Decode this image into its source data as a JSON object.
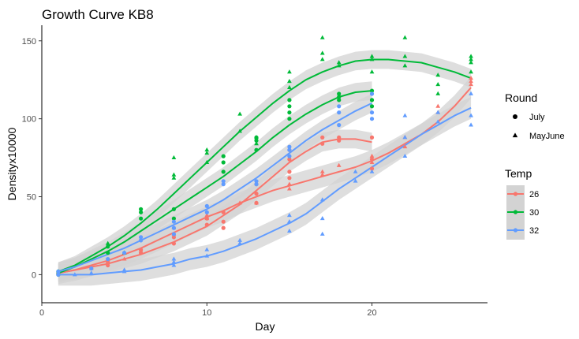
{
  "chart_data": {
    "type": "scatter",
    "title": "Growth Curve KB8",
    "xlabel": "Day",
    "ylabel": "Densityx10000",
    "xlim": [
      0,
      27
    ],
    "ylim": [
      -18,
      160
    ],
    "x_ticks": [
      0,
      10,
      20
    ],
    "y_ticks": [
      0,
      50,
      100,
      150
    ],
    "grid": false,
    "smooth_band_color": "#d3d3d3",
    "legends": {
      "shape": {
        "title": "Round",
        "entries": [
          {
            "label": "July",
            "shape": "circle"
          },
          {
            "label": "MayJune",
            "shape": "triangle"
          }
        ]
      },
      "color": {
        "title": "Temp",
        "entries": [
          {
            "label": "26",
            "color": "#F8766D"
          },
          {
            "label": "30",
            "color": "#00BA38"
          },
          {
            "label": "32",
            "color": "#619CFF"
          }
        ]
      }
    },
    "series": [
      {
        "temp": "26",
        "round": "July",
        "color": "#F8766D",
        "shape": "circle",
        "points": [
          [
            1,
            0
          ],
          [
            1,
            1
          ],
          [
            4,
            6
          ],
          [
            4,
            8
          ],
          [
            6,
            14
          ],
          [
            6,
            16
          ],
          [
            8,
            20
          ],
          [
            8,
            24
          ],
          [
            10,
            32
          ],
          [
            10,
            36
          ],
          [
            11,
            30
          ],
          [
            11,
            34
          ],
          [
            11,
            40
          ],
          [
            13,
            46
          ],
          [
            13,
            52
          ],
          [
            13,
            58
          ],
          [
            15,
            62
          ],
          [
            15,
            66
          ],
          [
            15,
            74
          ],
          [
            15,
            80
          ],
          [
            17,
            84
          ],
          [
            17,
            88
          ],
          [
            18,
            86
          ],
          [
            18,
            88
          ],
          [
            20,
            68
          ],
          [
            20,
            74
          ],
          [
            20,
            88
          ]
        ],
        "fit": [
          [
            1,
            1
          ],
          [
            2,
            3
          ],
          [
            3,
            5
          ],
          [
            4,
            7
          ],
          [
            5,
            10
          ],
          [
            6,
            13
          ],
          [
            7,
            17
          ],
          [
            8,
            21
          ],
          [
            9,
            26
          ],
          [
            10,
            31
          ],
          [
            11,
            38
          ],
          [
            12,
            45
          ],
          [
            13,
            54
          ],
          [
            14,
            63
          ],
          [
            15,
            72
          ],
          [
            16,
            79
          ],
          [
            17,
            85
          ],
          [
            18,
            87
          ],
          [
            19,
            87
          ],
          [
            20,
            85
          ]
        ],
        "band": 6
      },
      {
        "temp": "26",
        "round": "MayJune",
        "color": "#F8766D",
        "shape": "triangle",
        "points": [
          [
            1,
            1
          ],
          [
            3,
            4
          ],
          [
            5,
            10
          ],
          [
            6,
            16
          ],
          [
            8,
            26
          ],
          [
            8,
            30
          ],
          [
            10,
            36
          ],
          [
            10,
            38
          ],
          [
            12,
            46
          ],
          [
            13,
            46
          ],
          [
            15,
            55
          ],
          [
            15,
            58
          ],
          [
            17,
            64
          ],
          [
            17,
            66
          ],
          [
            18,
            70
          ],
          [
            20,
            72
          ],
          [
            20,
            76
          ],
          [
            22,
            82
          ],
          [
            22,
            88
          ],
          [
            24,
            104
          ],
          [
            24,
            108
          ],
          [
            26,
            122
          ],
          [
            26,
            124
          ],
          [
            26,
            126
          ]
        ],
        "fit": [
          [
            1,
            1
          ],
          [
            2,
            3
          ],
          [
            3,
            6
          ],
          [
            4,
            9
          ],
          [
            5,
            13
          ],
          [
            6,
            17
          ],
          [
            7,
            22
          ],
          [
            8,
            27
          ],
          [
            9,
            32
          ],
          [
            10,
            37
          ],
          [
            11,
            41
          ],
          [
            12,
            46
          ],
          [
            13,
            50
          ],
          [
            14,
            54
          ],
          [
            15,
            57
          ],
          [
            16,
            60
          ],
          [
            17,
            63
          ],
          [
            18,
            66
          ],
          [
            19,
            69
          ],
          [
            20,
            73
          ],
          [
            21,
            78
          ],
          [
            22,
            84
          ],
          [
            23,
            90
          ],
          [
            24,
            98
          ],
          [
            25,
            108
          ],
          [
            26,
            120
          ]
        ],
        "band": 7
      },
      {
        "temp": "30",
        "round": "July",
        "color": "#00BA38",
        "shape": "circle",
        "points": [
          [
            1,
            0
          ],
          [
            1,
            2
          ],
          [
            4,
            14
          ],
          [
            4,
            18
          ],
          [
            6,
            36
          ],
          [
            6,
            40
          ],
          [
            6,
            42
          ],
          [
            8,
            36
          ],
          [
            8,
            42
          ],
          [
            11,
            72
          ],
          [
            11,
            76
          ],
          [
            11,
            66
          ],
          [
            13,
            80
          ],
          [
            13,
            86
          ],
          [
            13,
            88
          ],
          [
            15,
            100
          ],
          [
            15,
            104
          ],
          [
            15,
            108
          ],
          [
            15,
            112
          ],
          [
            18,
            112
          ],
          [
            18,
            114
          ],
          [
            18,
            116
          ],
          [
            20,
            108
          ],
          [
            20,
            112
          ],
          [
            20,
            118
          ]
        ],
        "fit": [
          [
            1,
            1
          ],
          [
            2,
            5
          ],
          [
            3,
            10
          ],
          [
            4,
            15
          ],
          [
            5,
            21
          ],
          [
            6,
            28
          ],
          [
            7,
            35
          ],
          [
            8,
            42
          ],
          [
            9,
            49
          ],
          [
            10,
            56
          ],
          [
            11,
            63
          ],
          [
            12,
            71
          ],
          [
            13,
            79
          ],
          [
            14,
            88
          ],
          [
            15,
            96
          ],
          [
            16,
            103
          ],
          [
            17,
            109
          ],
          [
            18,
            114
          ],
          [
            19,
            117
          ],
          [
            20,
            118
          ]
        ],
        "band": 6
      },
      {
        "temp": "30",
        "round": "MayJune",
        "color": "#00BA38",
        "shape": "triangle",
        "points": [
          [
            1,
            2
          ],
          [
            4,
            20
          ],
          [
            5,
            14
          ],
          [
            8,
            62
          ],
          [
            8,
            64
          ],
          [
            8,
            75
          ],
          [
            10,
            72
          ],
          [
            10,
            78
          ],
          [
            10,
            80
          ],
          [
            12,
            92
          ],
          [
            12,
            103
          ],
          [
            13,
            84
          ],
          [
            13,
            88
          ],
          [
            15,
            120
          ],
          [
            15,
            124
          ],
          [
            15,
            130
          ],
          [
            17,
            138
          ],
          [
            17,
            142
          ],
          [
            17,
            152
          ],
          [
            18,
            134
          ],
          [
            18,
            136
          ],
          [
            20,
            130
          ],
          [
            20,
            138
          ],
          [
            20,
            140
          ],
          [
            22,
            134
          ],
          [
            22,
            140
          ],
          [
            22,
            152
          ],
          [
            24,
            116
          ],
          [
            24,
            122
          ],
          [
            24,
            128
          ],
          [
            26,
            130
          ],
          [
            26,
            136
          ],
          [
            26,
            138
          ],
          [
            26,
            140
          ]
        ],
        "fit": [
          [
            1,
            2
          ],
          [
            2,
            6
          ],
          [
            3,
            12
          ],
          [
            4,
            18
          ],
          [
            5,
            25
          ],
          [
            6,
            33
          ],
          [
            7,
            42
          ],
          [
            8,
            52
          ],
          [
            9,
            62
          ],
          [
            10,
            72
          ],
          [
            11,
            82
          ],
          [
            12,
            92
          ],
          [
            13,
            101
          ],
          [
            14,
            110
          ],
          [
            15,
            118
          ],
          [
            16,
            125
          ],
          [
            17,
            130
          ],
          [
            18,
            134
          ],
          [
            19,
            137
          ],
          [
            20,
            138
          ],
          [
            21,
            138
          ],
          [
            22,
            137
          ],
          [
            23,
            136
          ],
          [
            24,
            133
          ],
          [
            25,
            130
          ],
          [
            26,
            126
          ]
        ],
        "band": 6
      },
      {
        "temp": "32",
        "round": "July",
        "color": "#619CFF",
        "shape": "circle",
        "points": [
          [
            1,
            0
          ],
          [
            1,
            2
          ],
          [
            3,
            4
          ],
          [
            4,
            10
          ],
          [
            5,
            14
          ],
          [
            6,
            22
          ],
          [
            6,
            24
          ],
          [
            8,
            26
          ],
          [
            8,
            30
          ],
          [
            8,
            34
          ],
          [
            10,
            40
          ],
          [
            10,
            44
          ],
          [
            11,
            60
          ],
          [
            11,
            58
          ],
          [
            13,
            58
          ],
          [
            13,
            60
          ],
          [
            15,
            76
          ],
          [
            15,
            80
          ],
          [
            15,
            82
          ],
          [
            18,
            96
          ],
          [
            18,
            104
          ],
          [
            18,
            108
          ],
          [
            20,
            100
          ],
          [
            20,
            104
          ],
          [
            20,
            116
          ]
        ],
        "fit": [
          [
            1,
            2
          ],
          [
            2,
            5
          ],
          [
            3,
            9
          ],
          [
            4,
            13
          ],
          [
            5,
            17
          ],
          [
            6,
            22
          ],
          [
            7,
            27
          ],
          [
            8,
            32
          ],
          [
            9,
            37
          ],
          [
            10,
            42
          ],
          [
            11,
            48
          ],
          [
            12,
            55
          ],
          [
            13,
            62
          ],
          [
            14,
            70
          ],
          [
            15,
            78
          ],
          [
            16,
            86
          ],
          [
            17,
            93
          ],
          [
            18,
            99
          ],
          [
            19,
            105
          ],
          [
            20,
            110
          ]
        ],
        "band": 6
      },
      {
        "temp": "32",
        "round": "MayJune",
        "color": "#619CFF",
        "shape": "triangle",
        "points": [
          [
            1,
            1
          ],
          [
            2,
            0
          ],
          [
            3,
            1
          ],
          [
            5,
            2
          ],
          [
            5,
            3
          ],
          [
            8,
            6
          ],
          [
            8,
            8
          ],
          [
            8,
            10
          ],
          [
            10,
            12
          ],
          [
            10,
            16
          ],
          [
            12,
            20
          ],
          [
            12,
            22
          ],
          [
            15,
            28
          ],
          [
            15,
            34
          ],
          [
            15,
            38
          ],
          [
            17,
            26
          ],
          [
            17,
            36
          ],
          [
            17,
            48
          ],
          [
            19,
            60
          ],
          [
            19,
            66
          ],
          [
            20,
            66
          ],
          [
            22,
            76
          ],
          [
            22,
            88
          ],
          [
            22,
            102
          ],
          [
            24,
            98
          ],
          [
            24,
            104
          ],
          [
            26,
            96
          ],
          [
            26,
            102
          ],
          [
            26,
            116
          ]
        ],
        "fit": [
          [
            1,
            0
          ],
          [
            2,
            0
          ],
          [
            3,
            0
          ],
          [
            4,
            1
          ],
          [
            5,
            2
          ],
          [
            6,
            3
          ],
          [
            7,
            5
          ],
          [
            8,
            7
          ],
          [
            9,
            10
          ],
          [
            10,
            12
          ],
          [
            11,
            15
          ],
          [
            12,
            19
          ],
          [
            13,
            23
          ],
          [
            14,
            28
          ],
          [
            15,
            33
          ],
          [
            16,
            39
          ],
          [
            17,
            47
          ],
          [
            18,
            55
          ],
          [
            19,
            62
          ],
          [
            20,
            69
          ],
          [
            21,
            76
          ],
          [
            22,
            83
          ],
          [
            23,
            90
          ],
          [
            24,
            96
          ],
          [
            25,
            102
          ],
          [
            26,
            107
          ]
        ],
        "band": 7
      }
    ]
  }
}
